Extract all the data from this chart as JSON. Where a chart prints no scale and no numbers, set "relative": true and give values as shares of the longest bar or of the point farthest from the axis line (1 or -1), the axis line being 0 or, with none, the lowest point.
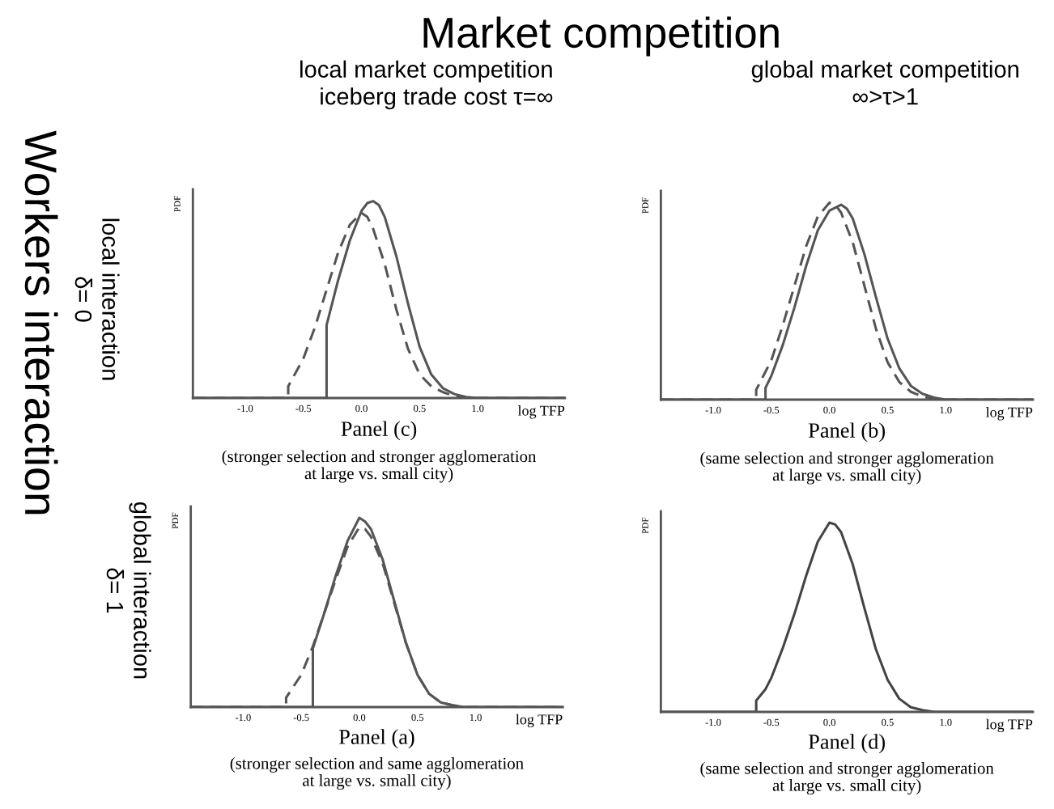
{
  "chart_data": [
    {
      "type": "other",
      "title": "Market competition",
      "annotations": [
        "local market competition\niceberg trade cost τ=∞",
        "global market competition\n∞>τ>1",
        "Workers interaction",
        "local interaction\nδ= 0",
        "global interaction\nδ= 1"
      ]
    },
    {
      "type": "line",
      "relative": true,
      "title": "Panel (c)",
      "xlabel": "log TFP",
      "ylabel": "PDF",
      "xlim": [
        -1.45,
        1.75
      ],
      "xticks": [
        {
          "value": -1.0,
          "label": "-1.0"
        },
        {
          "value": -0.5,
          "label": "-0.5"
        },
        {
          "value": 0,
          "label": "0.0"
        },
        {
          "value": 0.5,
          "label": "0.5"
        },
        {
          "value": 1.0,
          "label": "1.0"
        }
      ],
      "grid": false,
      "annotations": [
        "(stronger selection and stronger agglomeration\nat large vs. small city)"
      ],
      "series": [
        {
          "color": "#555555",
          "line_style": "solid",
          "x": [
            -1.45,
            -0.3,
            -0.3,
            -0.2,
            -0.1,
            0,
            0.05,
            0.1,
            0.15,
            0.2,
            0.3,
            0.4,
            0.5,
            0.6,
            0.7,
            0.8,
            0.9,
            1.0,
            1.75
          ],
          "values": [
            0,
            0,
            0.37,
            0.6,
            0.8,
            0.95,
            0.99,
            1.0,
            0.98,
            0.92,
            0.72,
            0.48,
            0.26,
            0.12,
            0.05,
            0.02,
            0.005,
            0,
            0
          ]
        },
        {
          "color": "#555555",
          "line_style": "dashed",
          "x": [
            -1.45,
            -0.63,
            -0.63,
            -0.5,
            -0.4,
            -0.3,
            -0.2,
            -0.1,
            0,
            0.05,
            0.1,
            0.2,
            0.3,
            0.4,
            0.5,
            0.6,
            0.7,
            0.8,
            0.9,
            1.75
          ],
          "values": [
            0,
            0,
            0.06,
            0.2,
            0.36,
            0.55,
            0.74,
            0.88,
            0.94,
            0.92,
            0.86,
            0.68,
            0.45,
            0.25,
            0.12,
            0.06,
            0.03,
            0.01,
            0,
            0
          ]
        }
      ]
    },
    {
      "type": "line",
      "relative": true,
      "title": "Panel (b)",
      "xlabel": "log TFP",
      "ylabel": "PDF",
      "xlim": [
        -1.45,
        1.75
      ],
      "xticks": [
        {
          "value": -1.0,
          "label": "-1.0"
        },
        {
          "value": -0.5,
          "label": "-0.5"
        },
        {
          "value": 0,
          "label": "0.0"
        },
        {
          "value": 0.5,
          "label": "0.5"
        },
        {
          "value": 1.0,
          "label": "1.0"
        }
      ],
      "grid": false,
      "annotations": [
        "(same selection and stronger agglomeration\nat large vs. small city)"
      ],
      "series": [
        {
          "color": "#555555",
          "line_style": "solid",
          "x": [
            -1.45,
            -0.55,
            -0.55,
            -0.5,
            -0.4,
            -0.3,
            -0.2,
            -0.1,
            0,
            0.1,
            0.15,
            0.2,
            0.3,
            0.4,
            0.5,
            0.6,
            0.7,
            0.8,
            0.9,
            1.0,
            1.75
          ],
          "values": [
            0,
            0,
            0.06,
            0.12,
            0.28,
            0.47,
            0.68,
            0.86,
            0.96,
            0.99,
            0.97,
            0.92,
            0.74,
            0.52,
            0.31,
            0.16,
            0.07,
            0.03,
            0.01,
            0,
            0
          ]
        },
        {
          "color": "#555555",
          "line_style": "dashed",
          "x": [
            -1.45,
            -0.63,
            -0.63,
            -0.5,
            -0.4,
            -0.3,
            -0.2,
            -0.1,
            0,
            0.05,
            0.1,
            0.2,
            0.3,
            0.4,
            0.5,
            0.6,
            0.7,
            0.8,
            0.9,
            1.0,
            1.75
          ],
          "values": [
            0,
            0,
            0.05,
            0.2,
            0.38,
            0.58,
            0.78,
            0.93,
            1.0,
            0.99,
            0.95,
            0.8,
            0.58,
            0.36,
            0.19,
            0.09,
            0.04,
            0.015,
            0.005,
            0,
            0
          ]
        }
      ]
    },
    {
      "type": "line",
      "relative": true,
      "title": "Panel (a)",
      "xlabel": "log TFP",
      "ylabel": "PDF",
      "xlim": [
        -1.45,
        1.75
      ],
      "xticks": [
        {
          "value": -1.0,
          "label": "-1.0"
        },
        {
          "value": -0.5,
          "label": "-0.5"
        },
        {
          "value": 0,
          "label": "0.0"
        },
        {
          "value": 0.5,
          "label": "0.5"
        },
        {
          "value": 1.0,
          "label": "1.0"
        }
      ],
      "grid": false,
      "annotations": [
        "(stronger selection and same agglomeration\nat large vs. small city)"
      ],
      "series": [
        {
          "color": "#555555",
          "line_style": "solid",
          "x": [
            -1.45,
            -0.4,
            -0.4,
            -0.3,
            -0.2,
            -0.1,
            0,
            0.05,
            0.1,
            0.2,
            0.3,
            0.4,
            0.5,
            0.6,
            0.7,
            0.8,
            0.9,
            1.75
          ],
          "values": [
            0,
            0,
            0.31,
            0.5,
            0.7,
            0.88,
            1.0,
            0.98,
            0.94,
            0.78,
            0.56,
            0.34,
            0.17,
            0.07,
            0.025,
            0.01,
            0,
            0
          ]
        },
        {
          "color": "#555555",
          "line_style": "dashed",
          "x": [
            -1.45,
            -0.63,
            -0.63,
            -0.5,
            -0.4,
            -0.3,
            -0.2,
            -0.1,
            0,
            0.05,
            0.1,
            0.2,
            0.3,
            0.4,
            0.5,
            0.6,
            0.7,
            0.8,
            0.9,
            1.75
          ],
          "values": [
            0,
            0,
            0.05,
            0.17,
            0.32,
            0.5,
            0.68,
            0.85,
            0.95,
            0.94,
            0.9,
            0.76,
            0.55,
            0.34,
            0.17,
            0.07,
            0.025,
            0.01,
            0,
            0
          ]
        }
      ]
    },
    {
      "type": "line",
      "relative": true,
      "title": "Panel (d)",
      "xlabel": "log TFP",
      "ylabel": "PDF",
      "xlim": [
        -1.45,
        1.75
      ],
      "xticks": [
        {
          "value": -1.0,
          "label": "-1.0"
        },
        {
          "value": -0.5,
          "label": "-0.5"
        },
        {
          "value": 0,
          "label": "0.0"
        },
        {
          "value": 0.5,
          "label": "0.5"
        },
        {
          "value": 1.0,
          "label": "1.0"
        }
      ],
      "grid": false,
      "annotations": [
        "(same selection and stronger agglomeration\nat large vs. small city)"
      ],
      "series": [
        {
          "color": "#444444",
          "line_style": "solid",
          "x": [
            -1.45,
            -0.63,
            -0.63,
            -0.55,
            -0.5,
            -0.4,
            -0.3,
            -0.2,
            -0.1,
            0,
            0.05,
            0.1,
            0.2,
            0.3,
            0.4,
            0.5,
            0.6,
            0.7,
            0.8,
            0.9,
            1.75
          ],
          "values": [
            0,
            0,
            0.06,
            0.12,
            0.18,
            0.34,
            0.52,
            0.72,
            0.9,
            1.0,
            0.99,
            0.95,
            0.78,
            0.55,
            0.33,
            0.17,
            0.07,
            0.025,
            0.01,
            0,
            0
          ]
        }
      ]
    }
  ]
}
